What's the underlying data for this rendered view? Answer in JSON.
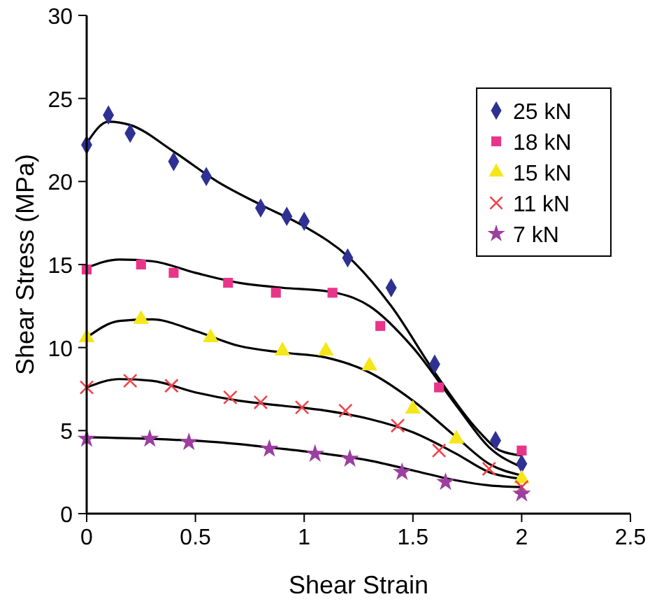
{
  "chart_data": {
    "type": "scatter",
    "xlabel": "Shear Strain",
    "ylabel": "Shear Stress (MPa)",
    "xlim": [
      0,
      2.5
    ],
    "ylim": [
      0,
      30
    ],
    "xticks": [
      0,
      0.5,
      1,
      1.5,
      2,
      2.5
    ],
    "yticks": [
      0,
      5,
      10,
      15,
      20,
      25,
      30
    ],
    "grid": false,
    "legend": "top right",
    "series": [
      {
        "name": "25 kN",
        "color": "#2e3192",
        "marker": "diamond",
        "x": [
          0,
          0.1,
          0.2,
          0.4,
          0.55,
          0.8,
          0.92,
          1.0,
          1.2,
          1.4,
          1.6,
          1.88,
          2.0
        ],
        "values": [
          22.2,
          24.0,
          22.9,
          21.2,
          20.3,
          18.4,
          17.9,
          17.6,
          15.4,
          13.6,
          9.0,
          4.4,
          3.0
        ]
      },
      {
        "name": "18 kN",
        "color": "#e8358a",
        "marker": "square",
        "x": [
          0,
          0.25,
          0.4,
          0.65,
          0.87,
          1.13,
          1.35,
          1.62,
          2.0
        ],
        "values": [
          14.7,
          15.0,
          14.5,
          13.9,
          13.3,
          13.3,
          11.3,
          7.6,
          3.8
        ]
      },
      {
        "name": "15 kN",
        "color": "#f5e61a",
        "marker": "triangle",
        "x": [
          0,
          0.25,
          0.57,
          0.9,
          1.1,
          1.3,
          1.5,
          1.7,
          2.0
        ],
        "values": [
          10.6,
          11.7,
          10.6,
          9.8,
          9.8,
          8.9,
          6.3,
          4.5,
          2.1
        ]
      },
      {
        "name": "11 kN",
        "color": "#f0434a",
        "marker": "cross",
        "x": [
          0,
          0.2,
          0.39,
          0.66,
          0.8,
          0.99,
          1.19,
          1.43,
          1.62,
          1.85,
          2.0
        ],
        "values": [
          7.6,
          8.0,
          7.7,
          7.0,
          6.7,
          6.4,
          6.2,
          5.3,
          3.8,
          2.7,
          1.6
        ]
      },
      {
        "name": "7 kN",
        "color": "#9b3fa0",
        "marker": "star",
        "x": [
          0,
          0.29,
          0.47,
          0.84,
          1.05,
          1.21,
          1.45,
          1.65,
          2.0
        ],
        "values": [
          4.5,
          4.5,
          4.3,
          3.9,
          3.6,
          3.3,
          2.5,
          1.9,
          1.2
        ]
      },
      {
        "type": "line",
        "color": "#000000",
        "x": [
          0,
          0.1,
          0.2,
          0.4,
          0.6,
          0.8,
          1.0,
          1.2,
          1.4,
          1.6,
          1.8,
          1.9,
          2.0
        ],
        "values": [
          22.3,
          23.6,
          23.4,
          21.8,
          20.0,
          18.6,
          17.3,
          15.5,
          12.5,
          8.5,
          5.0,
          3.8,
          3.5
        ]
      },
      {
        "type": "line",
        "color": "#000000",
        "x": [
          0,
          0.15,
          0.3,
          0.5,
          0.7,
          0.9,
          1.1,
          1.3,
          1.5,
          1.7,
          1.85,
          2.0
        ],
        "values": [
          14.8,
          15.3,
          15.2,
          14.5,
          13.9,
          13.6,
          13.4,
          12.5,
          10.0,
          6.5,
          4.0,
          2.8
        ]
      },
      {
        "type": "line",
        "color": "#000000",
        "x": [
          0,
          0.15,
          0.3,
          0.5,
          0.7,
          0.9,
          1.1,
          1.3,
          1.5,
          1.7,
          1.85,
          2.0
        ],
        "values": [
          10.6,
          11.6,
          11.7,
          11.0,
          10.1,
          9.7,
          9.4,
          8.5,
          6.8,
          4.6,
          3.0,
          2.3
        ]
      },
      {
        "type": "line",
        "color": "#000000",
        "x": [
          0,
          0.15,
          0.3,
          0.5,
          0.7,
          0.9,
          1.1,
          1.3,
          1.5,
          1.7,
          1.85,
          2.0
        ],
        "values": [
          7.6,
          8.1,
          8.0,
          7.3,
          6.8,
          6.5,
          6.2,
          5.7,
          4.9,
          3.6,
          2.5,
          2.1
        ]
      },
      {
        "type": "line",
        "color": "#000000",
        "x": [
          0,
          0.3,
          0.6,
          0.9,
          1.1,
          1.3,
          1.5,
          1.7,
          1.85,
          2.0
        ],
        "values": [
          4.6,
          4.5,
          4.3,
          3.9,
          3.6,
          3.2,
          2.6,
          2.0,
          1.7,
          1.6
        ]
      }
    ]
  }
}
